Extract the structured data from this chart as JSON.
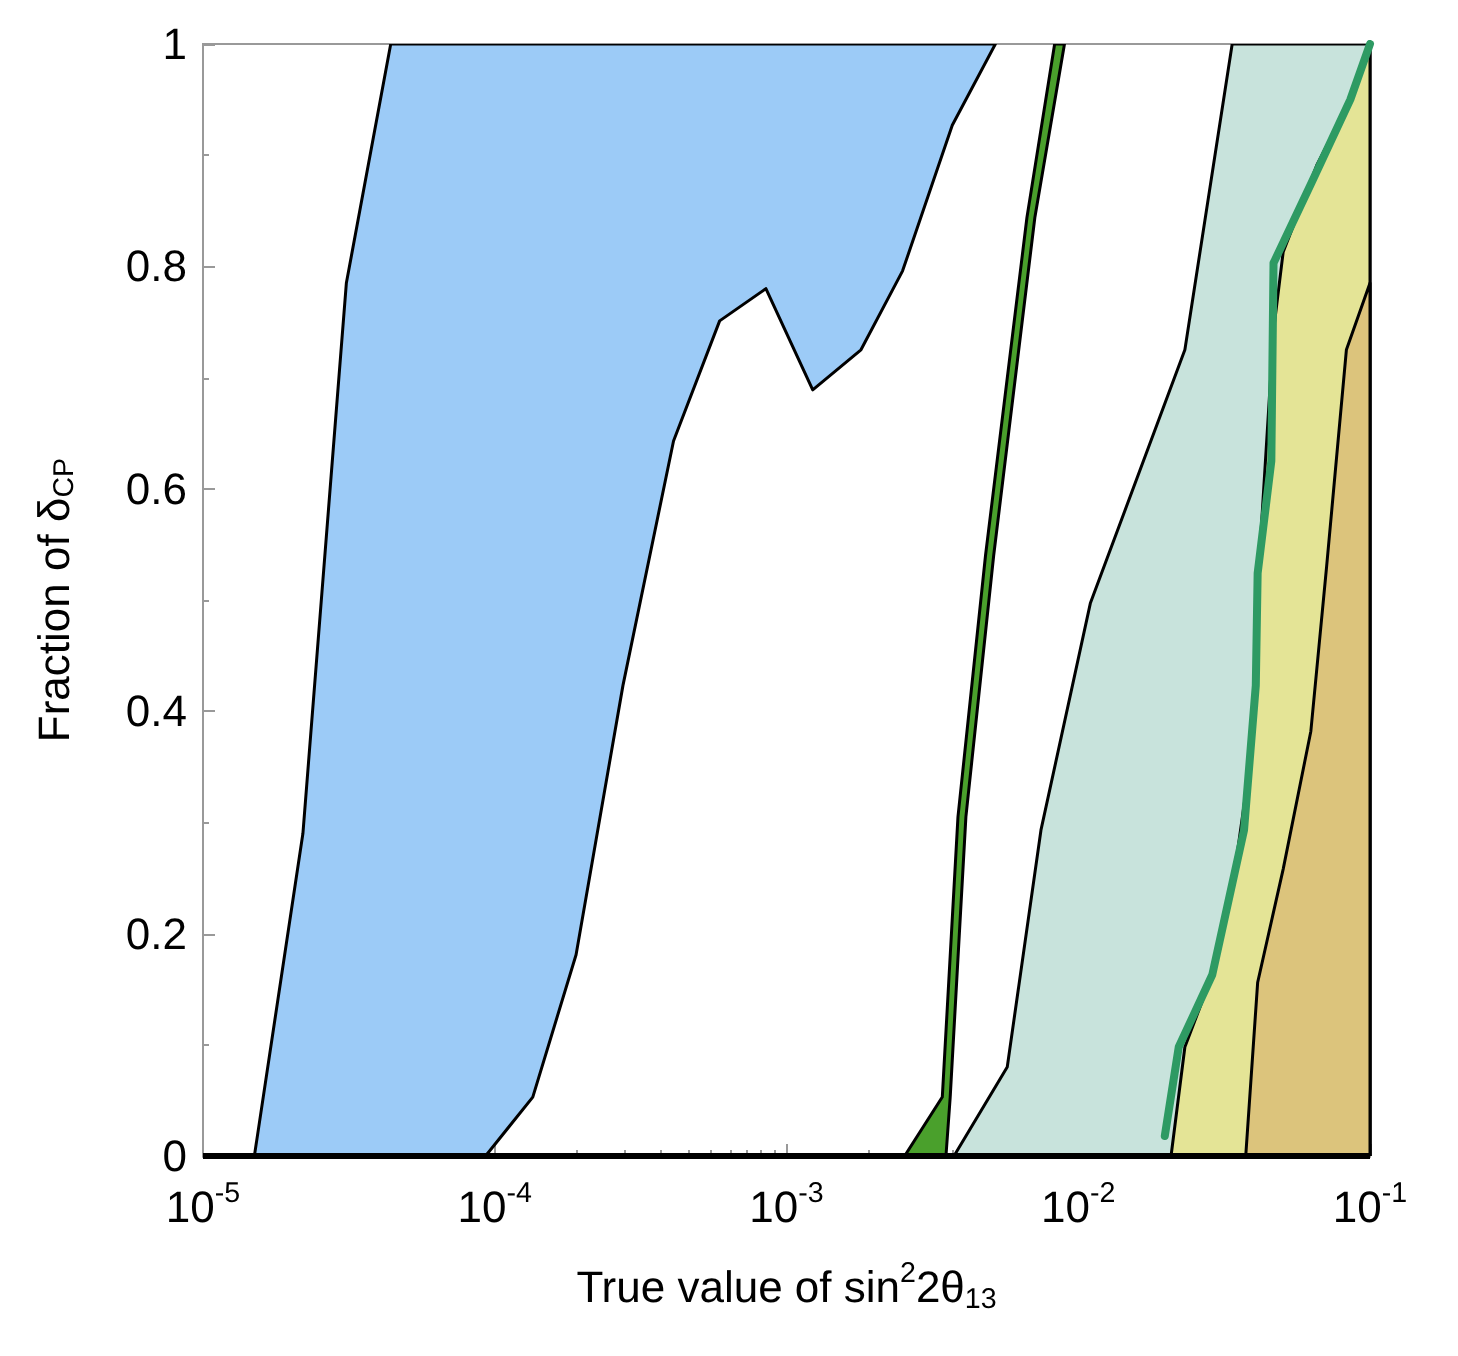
{
  "chart_data": {
    "type": "area",
    "xlabel": "True value of sin$^{2}$2θ$_{13}$",
    "ylabel": "Fraction of δ$_{CP}$",
    "log": "x",
    "grid": false,
    "xlim": [
      1e-05,
      0.1
    ],
    "ylim": [
      0,
      1
    ],
    "xticks": [
      {
        "value": 1e-05,
        "label": "10$^{-5}$"
      },
      {
        "value": 0.0001,
        "label": "10$^{-4}$"
      },
      {
        "value": 0.001,
        "label": "10$^{-3}$"
      },
      {
        "value": 0.01,
        "label": "10$^{-2}$"
      },
      {
        "value": 0.1,
        "label": "10$^{-1}$"
      }
    ],
    "yticks": [
      0,
      0.2,
      0.4,
      0.6,
      0.8,
      1
    ],
    "ref_lines": [
      {
        "axis": "y",
        "value": 0,
        "color": "#000000"
      }
    ],
    "series": [
      {
        "type": "area",
        "color": "#9ccbf7",
        "x": [
          1.5e-05,
          2.2e-05,
          3.1e-05,
          4.4e-05,
          0.0052,
          0.0037,
          0.0025,
          0.0018,
          0.00123,
          0.00085,
          0.00059,
          0.00041,
          0.000275,
          0.00019,
          0.000135,
          9.3e-05
        ],
        "values": [
          0,
          0.29,
          0.785,
          1,
          1,
          0.927,
          0.796,
          0.725,
          0.689,
          0.78,
          0.751,
          0.643,
          0.423,
          0.181,
          0.053,
          0
        ]
      },
      {
        "type": "area",
        "color": "#c8e3dc",
        "x": [
          0.00375,
          0.00571,
          0.00745,
          0.011,
          0.0232,
          0.0337,
          0.1,
          0.1
        ],
        "values": [
          0,
          0.08,
          0.293,
          0.497,
          0.725,
          1,
          1,
          0
        ]
      },
      {
        "type": "area",
        "color": "#e4e496",
        "x": [
          0.0208,
          0.0232,
          0.0288,
          0.0352,
          0.0393,
          0.0412,
          0.0467,
          0.0504,
          0.0657,
          0.0856,
          0.1,
          0.1
        ],
        "values": [
          0,
          0.098,
          0.163,
          0.275,
          0.364,
          0.512,
          0.742,
          0.813,
          0.891,
          0.95,
          1,
          0
        ]
      },
      {
        "type": "area",
        "color": "#dcc47c",
        "x": [
          0.0375,
          0.0412,
          0.0504,
          0.0627,
          0.071,
          0.083,
          0.1,
          0.1
        ],
        "values": [
          0,
          0.156,
          0.258,
          0.382,
          0.53,
          0.725,
          0.785,
          0
        ]
      },
      {
        "type": "area",
        "color": "#4aa02c",
        "x": [
          0.00254,
          0.00342,
          0.00387,
          0.00481,
          0.00667,
          0.0083,
          0.00897,
          0.0071,
          0.00513,
          0.00412,
          0.00364,
          0.00352
        ],
        "values": [
          0,
          0.053,
          0.305,
          0.54,
          0.844,
          1,
          1,
          0.844,
          0.54,
          0.305,
          0.053,
          0
        ]
      },
      {
        "type": "line",
        "color": "#2e9a63",
        "x": [
          0.0198,
          0.0221,
          0.0288,
          0.037,
          0.0406,
          0.0412,
          0.0459,
          0.0467,
          0.0627,
          0.0856,
          0.1
        ],
        "values": [
          0.018,
          0.098,
          0.163,
          0.293,
          0.423,
          0.524,
          0.625,
          0.803,
          0.874,
          0.95,
          1
        ]
      }
    ]
  }
}
